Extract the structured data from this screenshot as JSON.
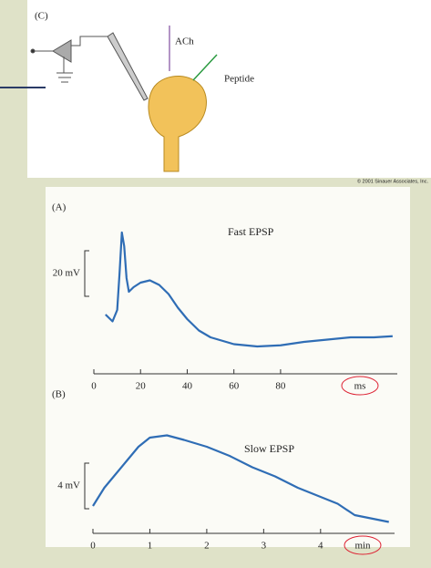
{
  "panel_c": {
    "label": "(C)",
    "transmitter": "ACh",
    "peptide": "Peptide",
    "credit": "© 2001 Sinauer Associates, Inc."
  },
  "chart_data": [
    {
      "type": "line",
      "panel": "(A)",
      "title": "Fast EPSP",
      "color": "#2f6db5",
      "x_unit": "ms",
      "scale_bar": {
        "value": 20,
        "label": "20 mV"
      },
      "x": [
        5,
        8,
        10,
        11,
        12,
        13,
        14,
        15,
        17,
        20,
        24,
        28,
        32,
        36,
        40,
        45,
        50,
        60,
        70,
        80,
        90,
        100,
        110,
        120,
        128
      ],
      "values": [
        14,
        11,
        16,
        32,
        50,
        44,
        30,
        24,
        26,
        28,
        29,
        27,
        23,
        17,
        12,
        7,
        4,
        1,
        0,
        0.5,
        2,
        3,
        4,
        4,
        4.5
      ],
      "xlim": [
        0,
        130
      ],
      "ylim": [
        -12,
        60
      ],
      "xticks": [
        0,
        20,
        40,
        60,
        80
      ]
    },
    {
      "type": "line",
      "panel": "(B)",
      "title": "Slow EPSP",
      "color": "#2f6db5",
      "x_unit": "min",
      "scale_bar": {
        "value": 4,
        "label": "4 mV"
      },
      "x": [
        0,
        0.2,
        0.4,
        0.6,
        0.8,
        1.0,
        1.3,
        1.6,
        2.0,
        2.4,
        2.8,
        3.2,
        3.6,
        4.0,
        4.3,
        4.6,
        5.2
      ],
      "values": [
        0.4,
        2,
        3.2,
        4.4,
        5.6,
        6.4,
        6.6,
        6.2,
        5.6,
        4.8,
        3.8,
        3,
        2,
        1.2,
        0.6,
        -0.4,
        -1
      ],
      "xlim": [
        0,
        5.3
      ],
      "ylim": [
        -2,
        10
      ],
      "xticks": [
        0,
        1,
        2,
        3,
        4
      ]
    }
  ]
}
